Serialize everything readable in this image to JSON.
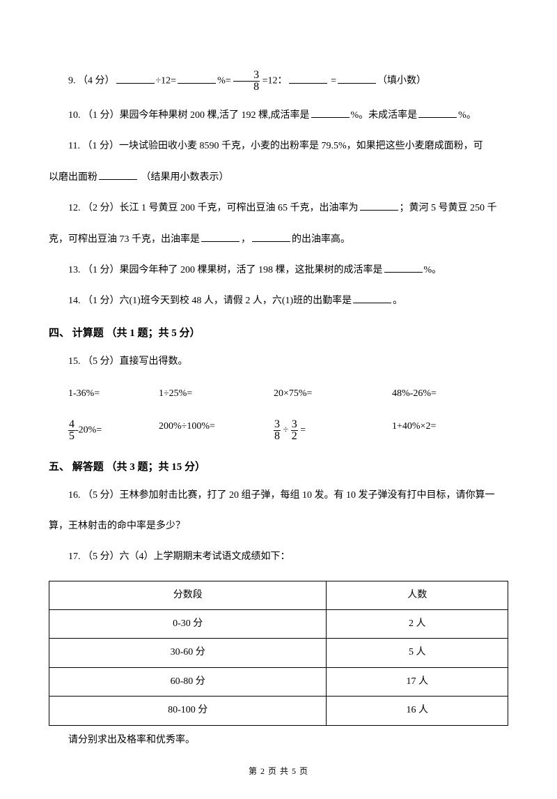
{
  "q9": {
    "num": "9. ",
    "points": "（4 分）",
    "t1": "÷12=",
    "t2": "%=",
    "frac_num": "3",
    "frac_den": "8",
    "t3": " =12：",
    "t4": "  =",
    "t5": "（填小数）"
  },
  "q10": {
    "num": "10. ",
    "points": "（1 分）",
    "text1": "果园今年种果树 200 棵,活了 192 棵,成活率是",
    "text2": "%。未成活率是",
    "text3": "%。"
  },
  "q11": {
    "num": "11. ",
    "points": " （1 分）",
    "text1": "一块试验田收小麦 8590 千克，小麦的出粉率是 79.5%，如果把这些小麦磨成面粉，可",
    "text2": "以磨出面粉",
    "text3": " （结果用小数表示）"
  },
  "q12": {
    "num": "12. ",
    "points": "（2 分）",
    "text1": "长江 1 号黄豆 200 千克，可榨出豆油 65 千克，出油率为",
    "text2": "；黄河 5 号黄豆 250 千",
    "text3": "克，可榨出豆油 73 千克，出油率是",
    "text4": "，",
    "text5": "的出油率高。"
  },
  "q13": {
    "num": "13. ",
    "points": "（1 分）",
    "text1": "果园今年种了 200 棵果树，活了 198 棵，这批果树的成活率是",
    "text2": "%。"
  },
  "q14": {
    "num": "14. ",
    "points": "（1 分）",
    "text1": "六(1)班今天到校 48 人，请假 2 人，六(1)班的出勤率是",
    "text2": "。"
  },
  "section4": "四、 计算题 （共 1 题；共 5 分）",
  "q15": {
    "num": "15. ",
    "points": "（5 分）",
    "text1": "直接写出得数。",
    "row1": {
      "c1": "1-36%=",
      "c2": "1÷25%=",
      "c3": "20×75%=",
      "c4": "48%-26%="
    },
    "row2": {
      "c1_frac_num": "4",
      "c1_frac_den": "5",
      "c1_suffix": "-20%=",
      "c2": "200%÷100%=",
      "c3_frac1_num": "3",
      "c3_frac1_den": "8",
      "c3_mid": " ÷ ",
      "c3_frac2_num": "3",
      "c3_frac2_den": "2",
      "c3_suffix": "  =",
      "c4": "1+40%×2="
    }
  },
  "section5": "五、 解答题 （共 3 题；共 15 分）",
  "q16": {
    "num": "16. ",
    "points": "（5 分）",
    "text1": "王林参加射击比赛，打了 20 组子弹，每组 10 发。有 10 发子弹没有打中目标，请你算一",
    "text2": "算，王林射击的命中率是多少？"
  },
  "q17": {
    "num": "17. ",
    "points": "（5 分）",
    "text1": "六（4）上学期期末考试语文成绩如下：",
    "table": {
      "headers": [
        "分数段",
        "人数"
      ],
      "rows": [
        [
          "0-30 分",
          "2 人"
        ],
        [
          "30-60 分",
          "5 人"
        ],
        [
          "60-80 分",
          "17 人"
        ],
        [
          "80-100 分",
          "16 人"
        ]
      ]
    },
    "text2": "请分别求出及格率和优秀率。"
  },
  "footer": "第  2  页  共  5  页"
}
